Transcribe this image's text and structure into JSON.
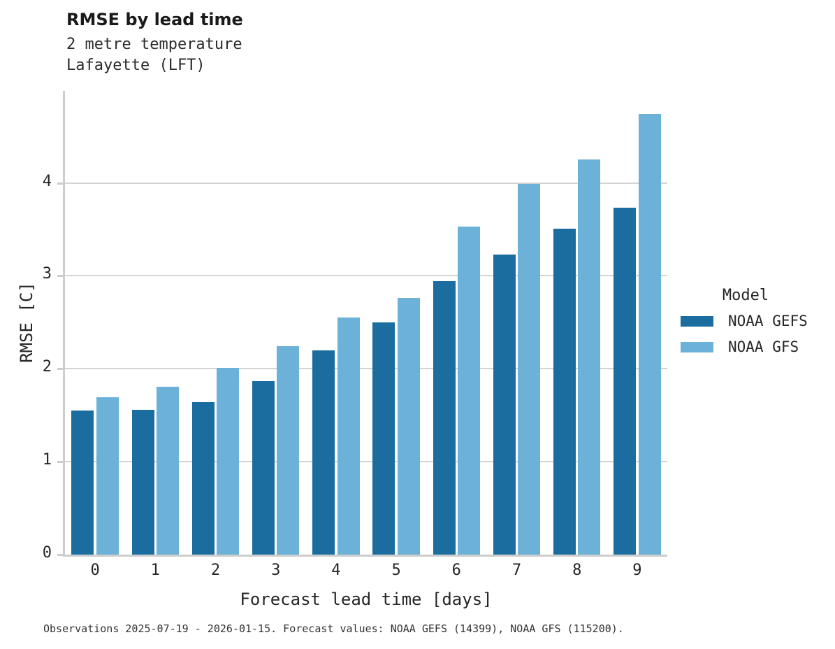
{
  "chart_data": {
    "type": "bar",
    "title": "RMSE by lead time",
    "subtitle_variable": "2 metre temperature",
    "subtitle_station": "Lafayette (LFT)",
    "xlabel": "Forecast lead time [days]",
    "ylabel": "RMSE [C]",
    "categories": [
      "0",
      "1",
      "2",
      "3",
      "4",
      "5",
      "6",
      "7",
      "8",
      "9"
    ],
    "series": [
      {
        "name": "NOAA GEFS",
        "color": "#1a6d9e",
        "values": [
          1.55,
          1.56,
          1.64,
          1.87,
          2.2,
          2.5,
          2.94,
          3.23,
          3.51,
          3.73
        ]
      },
      {
        "name": "NOAA GFS",
        "color": "#6cb1d8",
        "values": [
          1.69,
          1.81,
          2.01,
          2.24,
          2.55,
          2.76,
          3.53,
          3.99,
          4.25,
          4.74
        ]
      }
    ],
    "ylim": [
      0,
      4.99
    ],
    "yticks": [
      0,
      1,
      2,
      3,
      4
    ],
    "grid": true,
    "legend": {
      "title": "Model",
      "position": "right"
    }
  },
  "footer": {
    "caption": "Observations 2025-07-19 - 2026-01-15. Forecast values: NOAA GEFS (14399), NOAA GFS (115200)."
  },
  "colors": {
    "grid": "#d4d4d4",
    "spine": "#cdcdcd",
    "text": "#262626"
  }
}
